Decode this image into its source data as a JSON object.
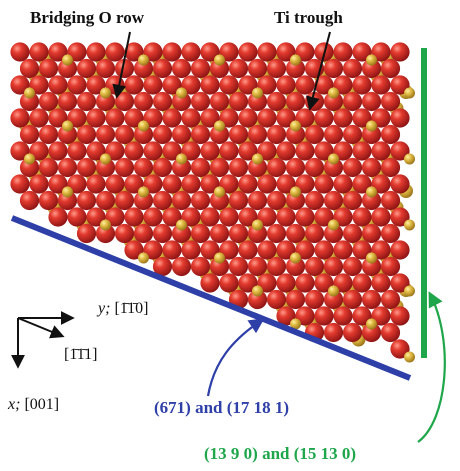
{
  "labels": {
    "bridging_o_row": "Bridging O row",
    "ti_trough": "Ti trough"
  },
  "axes": {
    "y_axis": "y; [1Š1Š0]",
    "y_prefix": "y; ",
    "y_miller": "[1̄1̄0]",
    "one_one_bar_one": "[1̄1̄1]",
    "x_axis": "x; [001]",
    "x_prefix": "x; ",
    "x_miller": "[001]"
  },
  "planes": {
    "blue_label": "(671) and (17 18 1)",
    "green_label": "(13 9 0) and (15 13 0)"
  },
  "colors": {
    "oxygen": "#d42a2a",
    "titanium": "#d9b43a",
    "blue_plane": "#2e3fa8",
    "green_plane": "#1fa64a",
    "text": "#111111"
  }
}
